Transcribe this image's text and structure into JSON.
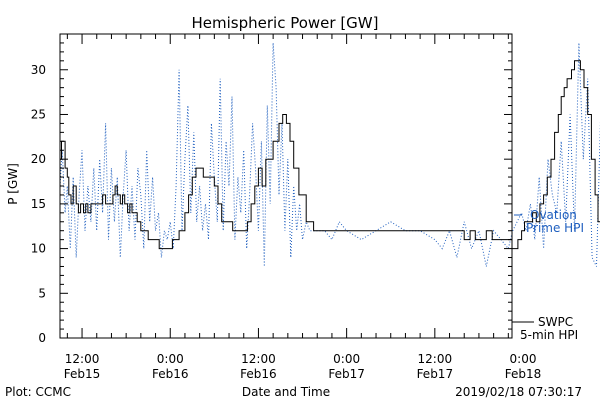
{
  "chart_data": {
    "type": "line",
    "title": "Hemispheric Power [GW]",
    "xlabel": "Date and Time",
    "ylabel": "P [GW]",
    "ylim": [
      0,
      34
    ],
    "xlim_hours": [
      -15,
      46.5
    ],
    "y_ticks": [
      0,
      5,
      10,
      15,
      20,
      25,
      30
    ],
    "x_ticks": [
      {
        "time": "12:00",
        "date": "Feb15",
        "hour": -12
      },
      {
        "time": "0:00",
        "date": "Feb16",
        "hour": 0
      },
      {
        "time": "12:00",
        "date": "Feb16",
        "hour": 12
      },
      {
        "time": "0:00",
        "date": "Feb17",
        "hour": 24
      },
      {
        "time": "12:00",
        "date": "Feb17",
        "hour": 36
      },
      {
        "time": "0:00",
        "date": "Feb18",
        "hour": 48
      }
    ],
    "grid": false,
    "series": [
      {
        "name": "SWPC 5-min HPI",
        "color": "#000000",
        "style": "solid",
        "x": [
          -15.0,
          -14.8,
          -14.3,
          -14.0,
          -13.8,
          -13.5,
          -13.2,
          -12.8,
          -12.5,
          -12.2,
          -11.8,
          -11.5,
          -11.2,
          -10.8,
          -10.3,
          -9.8,
          -9.2,
          -8.8,
          -8.2,
          -7.8,
          -7.5,
          -7.2,
          -6.8,
          -6.5,
          -6.2,
          -5.8,
          -5.5,
          -5.2,
          -4.5,
          -4.0,
          -3.5,
          -3.0,
          -2.5,
          -2.0,
          -1.5,
          -0.8,
          0.0,
          0.3,
          0.6,
          1.2,
          2.0,
          2.5,
          3.0,
          3.5,
          4.5,
          5.5,
          6.0,
          6.5,
          7.0,
          7.8,
          8.5,
          9.0,
          9.6,
          10.0,
          10.5,
          11.0,
          11.5,
          12.0,
          12.5,
          13.0,
          14.0,
          14.8,
          15.3,
          15.8,
          16.3,
          16.8,
          17.5,
          18.5,
          19.5,
          20.3,
          21.0,
          21.8,
          22.5,
          23.3,
          24.0,
          25.5,
          27.0,
          28.5,
          30.0,
          31.5,
          33.0,
          34.5,
          36.0,
          37.5,
          39.0,
          40.0,
          40.8,
          41.5,
          42.3,
          43.0,
          43.8,
          44.5,
          45.2,
          45.8,
          46.5,
          46.9,
          47.3,
          47.8,
          48.2,
          48.8,
          49.3,
          49.8,
          50.3,
          50.8,
          51.3,
          51.8,
          52.3,
          52.8,
          53.2,
          53.6,
          54.0,
          54.6,
          55.0,
          55.4,
          55.8,
          56.3,
          56.8,
          57.3,
          57.8,
          58.2,
          58.6,
          58.9
        ],
        "y": [
          20,
          22,
          19,
          18,
          16,
          15,
          17,
          15,
          14,
          15,
          14,
          15,
          14,
          15,
          15,
          15,
          16,
          15,
          15,
          16,
          17,
          16,
          15,
          16,
          15,
          14,
          15,
          14,
          13,
          12,
          12,
          11,
          11,
          11,
          10,
          10,
          10,
          11,
          11,
          12,
          14,
          16,
          18,
          19,
          18,
          18,
          17,
          15,
          13,
          13,
          12,
          12,
          12,
          12,
          13,
          15,
          17,
          19,
          17,
          20,
          22,
          24,
          25,
          24,
          22,
          19,
          16,
          13,
          12,
          12,
          12,
          12,
          12,
          12,
          12,
          12,
          12,
          12,
          12,
          12,
          12,
          12,
          12,
          12,
          12,
          11,
          12,
          11,
          11,
          12,
          11,
          11,
          11,
          11,
          10,
          10,
          11,
          12,
          13,
          13,
          14,
          13,
          15,
          16,
          18,
          20,
          23,
          25,
          27,
          28,
          29,
          30,
          31,
          31,
          30,
          28,
          25,
          20,
          16,
          13,
          11,
          10
        ]
      },
      {
        "name": "Ovation Prime HPI",
        "color": "#1f5fbf",
        "style": "dotted",
        "x": [
          -15.0,
          -14.7,
          -14.3,
          -14.0,
          -13.6,
          -13.2,
          -12.8,
          -12.4,
          -12.0,
          -11.6,
          -11.2,
          -10.8,
          -10.4,
          -10.0,
          -9.6,
          -9.2,
          -8.8,
          -8.4,
          -8.0,
          -7.6,
          -7.2,
          -6.8,
          -6.4,
          -6.0,
          -5.6,
          -5.2,
          -4.8,
          -4.4,
          -4.0,
          -3.6,
          -3.2,
          -2.8,
          -2.4,
          -2.0,
          -1.6,
          -1.2,
          -0.8,
          -0.4,
          0.0,
          0.4,
          0.8,
          1.2,
          1.6,
          2.0,
          2.4,
          2.8,
          3.2,
          3.6,
          4.0,
          4.4,
          4.8,
          5.2,
          5.6,
          6.0,
          6.4,
          6.8,
          7.2,
          7.6,
          8.0,
          8.4,
          8.8,
          9.2,
          9.6,
          10.0,
          10.4,
          10.8,
          11.2,
          11.6,
          12.0,
          12.4,
          12.8,
          13.2,
          13.6,
          14.0,
          14.4,
          14.8,
          15.2,
          15.6,
          16.0,
          16.4,
          16.8,
          17.2,
          17.6,
          18.0,
          18.5,
          19.0,
          20.0,
          21.0,
          22.0,
          23.0,
          24.0,
          26.0,
          28.0,
          30.0,
          32.0,
          34.0,
          36.0,
          37.0,
          38.0,
          39.0,
          40.0,
          41.0,
          42.0,
          43.0,
          44.0,
          45.0,
          46.0,
          46.6,
          47.2,
          47.8,
          48.4,
          49.0,
          49.6,
          50.2,
          50.8,
          51.4,
          52.0,
          52.6,
          53.2,
          53.8,
          54.4,
          55.0,
          55.6,
          56.2,
          56.8,
          57.4,
          58.0,
          58.6,
          58.9
        ],
        "y": [
          17,
          21,
          14,
          17,
          10,
          18,
          9,
          16,
          21,
          12,
          17,
          13,
          19,
          12,
          20,
          14,
          24,
          11,
          19,
          13,
          18,
          9,
          16,
          21,
          12,
          17,
          11,
          19,
          16,
          10,
          21,
          13,
          18,
          12,
          14,
          9,
          12,
          11,
          13,
          10,
          17,
          30,
          12,
          20,
          26,
          14,
          23,
          13,
          17,
          12,
          15,
          11,
          24,
          18,
          13,
          29,
          12,
          22,
          17,
          27,
          11,
          18,
          14,
          21,
          10,
          16,
          24,
          19,
          12,
          22,
          8,
          26,
          15,
          33,
          28,
          16,
          24,
          12,
          20,
          9,
          17,
          12,
          15,
          11,
          13,
          12,
          12,
          12,
          11,
          13,
          12,
          11,
          12,
          13,
          12,
          12,
          11,
          10,
          12,
          9,
          13,
          10,
          12,
          8,
          12,
          11,
          10,
          12,
          13,
          14,
          12,
          15,
          11,
          18,
          10,
          20,
          16,
          14,
          22,
          13,
          25,
          12,
          33,
          20,
          29,
          9,
          8,
          26,
          32
        ]
      }
    ],
    "legend": {
      "ovation": {
        "line1": "Ovation",
        "line2": "Prime HPI",
        "color": "#1f5fbf"
      },
      "swpc": {
        "line1": "SWPC",
        "line2": "5-min HPI",
        "color": "#000000"
      }
    }
  },
  "footer": {
    "plot_credit": "Plot: CCMC",
    "timestamp": "2019/02/18 07:30:17"
  }
}
